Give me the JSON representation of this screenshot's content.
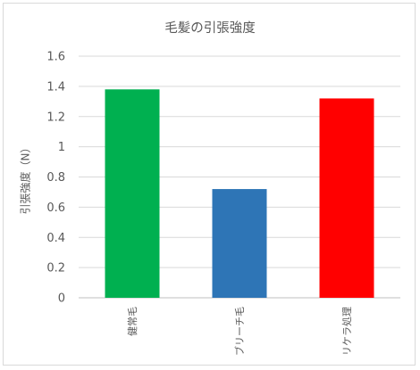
{
  "chart_data": {
    "type": "bar",
    "title": "毛髪の引張強度",
    "ylabel": "引張強度（N）",
    "xlabel": "",
    "categories": [
      "健常毛",
      "ブリーチ毛",
      "リケラ処理"
    ],
    "values": [
      1.38,
      0.72,
      1.32
    ],
    "colors": [
      "#00b050",
      "#2e75b6",
      "#ff0000"
    ],
    "ylim": [
      0,
      1.6
    ],
    "yticks": [
      "0",
      "0.2",
      "0.4",
      "0.6",
      "0.8",
      "1",
      "1.2",
      "1.4",
      "1.6"
    ],
    "grid": true,
    "legend": "none"
  }
}
